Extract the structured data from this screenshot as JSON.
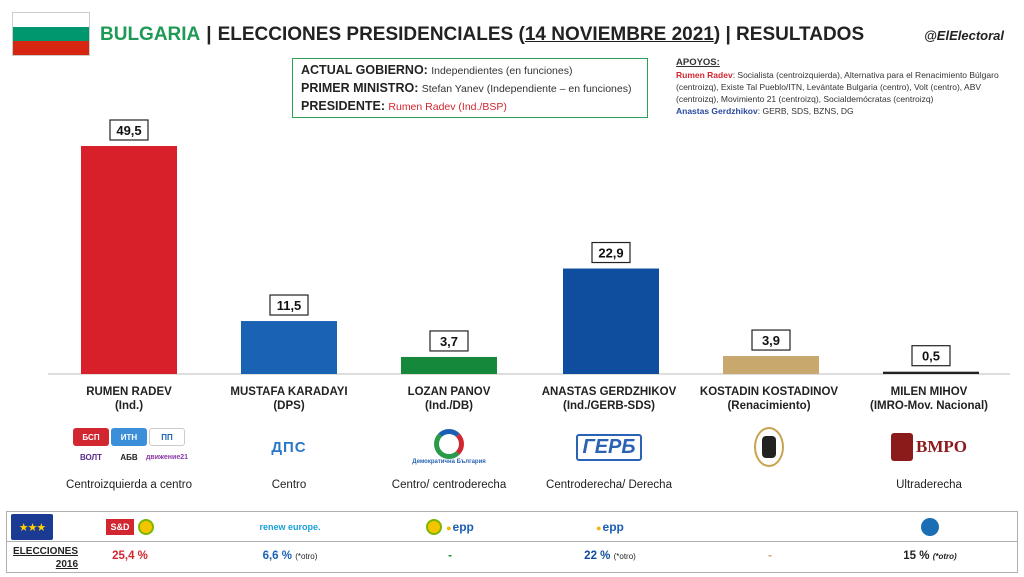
{
  "header": {
    "country": "BULGARIA",
    "title_pre": "ELECCIONES PRESIDENCIALES (",
    "title_date": "14 NOVIEMBRE 2021",
    "title_post": ") | RESULTADOS",
    "handle": "@ElElectoral"
  },
  "flag_colors": [
    "#ffffff",
    "#00966e",
    "#d62612"
  ],
  "government": {
    "actual_label": "ACTUAL GOBIERNO:",
    "actual_value": "Independientes (en funciones)",
    "pm_label": "PRIMER MINISTRO:",
    "pm_value": "Stefan Yanev (Independiente – en funciones)",
    "president_label": "PRESIDENTE:",
    "president_value": "Rumen Radev (Ind./BSP)"
  },
  "apoyos": {
    "heading": "APOYOS:",
    "radev_name": "Rumen Radev",
    "radev_text": ": Socialista (centroizquierda), Alternativa para el Renacimiento Búlgaro (centroizq), Existe Tal Pueblo/ITN, Levántate Bulgaria (centro), Volt (centro), ABV (centroizq), Movimiento 21 (centroizq), Socialdemócratas (centroizq)",
    "gerdzhikov_name": "Anastas Gerdzhikov",
    "gerdzhikov_text": ": GERB, SDS, BZNS, DG"
  },
  "chart_data": {
    "type": "bar",
    "categories": [
      "RUMEN RADEV",
      "MUSTAFA KARADAYI",
      "LOZAN PANOV",
      "ANASTAS GERDZHIKOV",
      "KOSTADIN KOSTADINOV",
      "MILEN MIHOV"
    ],
    "values": [
      49.5,
      11.5,
      3.7,
      22.9,
      3.9,
      0.5
    ],
    "value_labels": [
      "49,5",
      "11,5",
      "3,7",
      "22,9",
      "3,9",
      "0,5"
    ],
    "colors": [
      "#d7202a",
      "#1a63b4",
      "#16883c",
      "#0f4d9e",
      "#c9a86e",
      "#222222"
    ],
    "ylim": [
      0,
      50
    ]
  },
  "candidates": [
    {
      "name": "RUMEN RADEV",
      "party": "(Ind.)",
      "ideology": "Centroizquierda a centro",
      "eu_group": "S&D",
      "e2016": "25,4 %",
      "e2016_note": "",
      "e2016_color": "#d22630"
    },
    {
      "name": "MUSTAFA KARADAYI",
      "party": "(DPS)",
      "ideology": "Centro",
      "eu_group": "renew europe.",
      "e2016": "6,6 %",
      "e2016_note": "(*otro)",
      "e2016_color": "#1a63b4"
    },
    {
      "name": "LOZAN PANOV",
      "party": "(Ind./DB)",
      "ideology": "Centro/ centroderecha",
      "eu_group": "epp",
      "e2016": "-",
      "e2016_note": "",
      "e2016_color": "#16883c"
    },
    {
      "name": "ANASTAS GERDZHIKOV",
      "party": "(Ind./GERB-SDS)",
      "ideology": "Centroderecha/ Derecha",
      "eu_group": "epp",
      "e2016": "22 %",
      "e2016_note": "(*otro)",
      "e2016_color": "#0f4d9e"
    },
    {
      "name": "KOSTADIN KOSTADINOV",
      "party": "(Renacimiento)",
      "ideology": "",
      "eu_group": "",
      "e2016": "-",
      "e2016_note": "",
      "e2016_color": "#c9a86e"
    },
    {
      "name": "MILEN MIHOV",
      "party": "(IMRO-Mov. Nacional)",
      "ideology": "Ultraderecha",
      "eu_group": "ECR",
      "e2016": "15 %",
      "e2016_note": "(*otro)",
      "e2016_color": "#222222"
    }
  ],
  "logos": {
    "dps": "ДПС",
    "gerb": "ГЕРБ",
    "vmro": "ВМРО",
    "db": "Демократична България",
    "radev": [
      "БСП",
      "ИТН",
      "ПП",
      "ВОЛТ",
      "АБВ",
      "движение21"
    ]
  },
  "bottom": {
    "elections_label": "ELECCIONES",
    "elections_year": "2016",
    "sd_label": "S&D",
    "renew_label": "renew europe.",
    "epp_label": "epp"
  }
}
